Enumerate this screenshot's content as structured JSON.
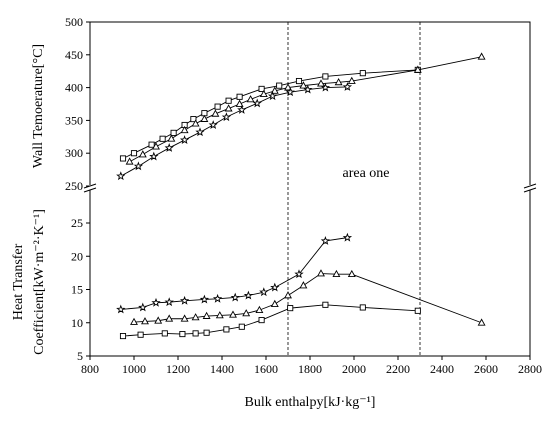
{
  "chart_data": {
    "type": "line",
    "xlabel": "Bulk enthalpy[kJ·kg⁻¹]",
    "xlim": [
      800,
      2800
    ],
    "xticks": [
      800,
      1000,
      1200,
      1400,
      1600,
      1800,
      2000,
      2200,
      2400,
      2600,
      2800
    ],
    "panels": {
      "top": {
        "ylabel": "Wall Temoerature[°C]",
        "ylim": [
          250,
          500
        ],
        "yticks": [
          250,
          300,
          350,
          400,
          450,
          500
        ],
        "series": [
          {
            "marker": "square",
            "x": [
              950,
              1000,
              1080,
              1130,
              1180,
              1230,
              1270,
              1320,
              1380,
              1430,
              1480,
              1580,
              1660,
              1750,
              1870,
              2040,
              2290
            ],
            "values": [
              292,
              300,
              313,
              322,
              331,
              343,
              352,
              361,
              371,
              380,
              386,
              398,
              403,
              410,
              417,
              422,
              427
            ]
          },
          {
            "marker": "triangle",
            "x": [
              980,
              1040,
              1100,
              1170,
              1230,
              1280,
              1320,
              1370,
              1430,
              1480,
              1530,
              1590,
              1640,
              1700,
              1770,
              1850,
              1930,
              1990,
              2290,
              2580
            ],
            "values": [
              287,
              298,
              310,
              322,
              335,
              345,
              352,
              360,
              368,
              375,
              382,
              390,
              395,
              400,
              403,
              406,
              408,
              410,
              427,
              447
            ]
          },
          {
            "marker": "star",
            "x": [
              940,
              1020,
              1090,
              1160,
              1230,
              1300,
              1360,
              1420,
              1490,
              1560,
              1630,
              1710,
              1790,
              1870,
              1970
            ],
            "values": [
              265,
              280,
              295,
              308,
              320,
              332,
              343,
              355,
              366,
              376,
              387,
              393,
              397,
              400,
              401
            ]
          }
        ]
      },
      "bottom": {
        "ylabel_line1": "Heat Transfer",
        "ylabel_line2": "Coefficient[kW·m⁻²·K⁻¹]",
        "ylim": [
          5,
          30
        ],
        "yticks": [
          5,
          10,
          15,
          20,
          25
        ],
        "series": [
          {
            "marker": "square",
            "x": [
              950,
              1030,
              1140,
              1220,
              1280,
              1330,
              1420,
              1490,
              1580,
              1710,
              1870,
              2040,
              2290
            ],
            "values": [
              8.0,
              8.2,
              8.4,
              8.3,
              8.4,
              8.5,
              9.0,
              9.4,
              10.4,
              12.2,
              12.7,
              12.3,
              11.8
            ]
          },
          {
            "marker": "triangle",
            "x": [
              1000,
              1050,
              1110,
              1160,
              1230,
              1280,
              1330,
              1390,
              1450,
              1510,
              1570,
              1640,
              1700,
              1770,
              1850,
              1920,
              1990,
              2580
            ],
            "values": [
              10.1,
              10.2,
              10.3,
              10.6,
              10.6,
              10.8,
              11.0,
              11.1,
              11.2,
              11.4,
              11.9,
              12.8,
              14.1,
              15.6,
              17.4,
              17.3,
              17.3,
              10.0
            ]
          },
          {
            "marker": "star",
            "x": [
              940,
              1040,
              1100,
              1160,
              1230,
              1320,
              1380,
              1460,
              1520,
              1590,
              1640,
              1750,
              1870,
              1970
            ],
            "values": [
              12.0,
              12.3,
              13.0,
              13.1,
              13.3,
              13.5,
              13.6,
              13.8,
              14.1,
              14.6,
              15.3,
              17.3,
              22.3,
              22.8
            ]
          }
        ]
      }
    },
    "reference_lines_x": [
      1700,
      2300
    ],
    "annotations": [
      {
        "text": "area one"
      }
    ],
    "colors": {
      "line": "#000000",
      "marker_fill": "#ffffff"
    }
  }
}
